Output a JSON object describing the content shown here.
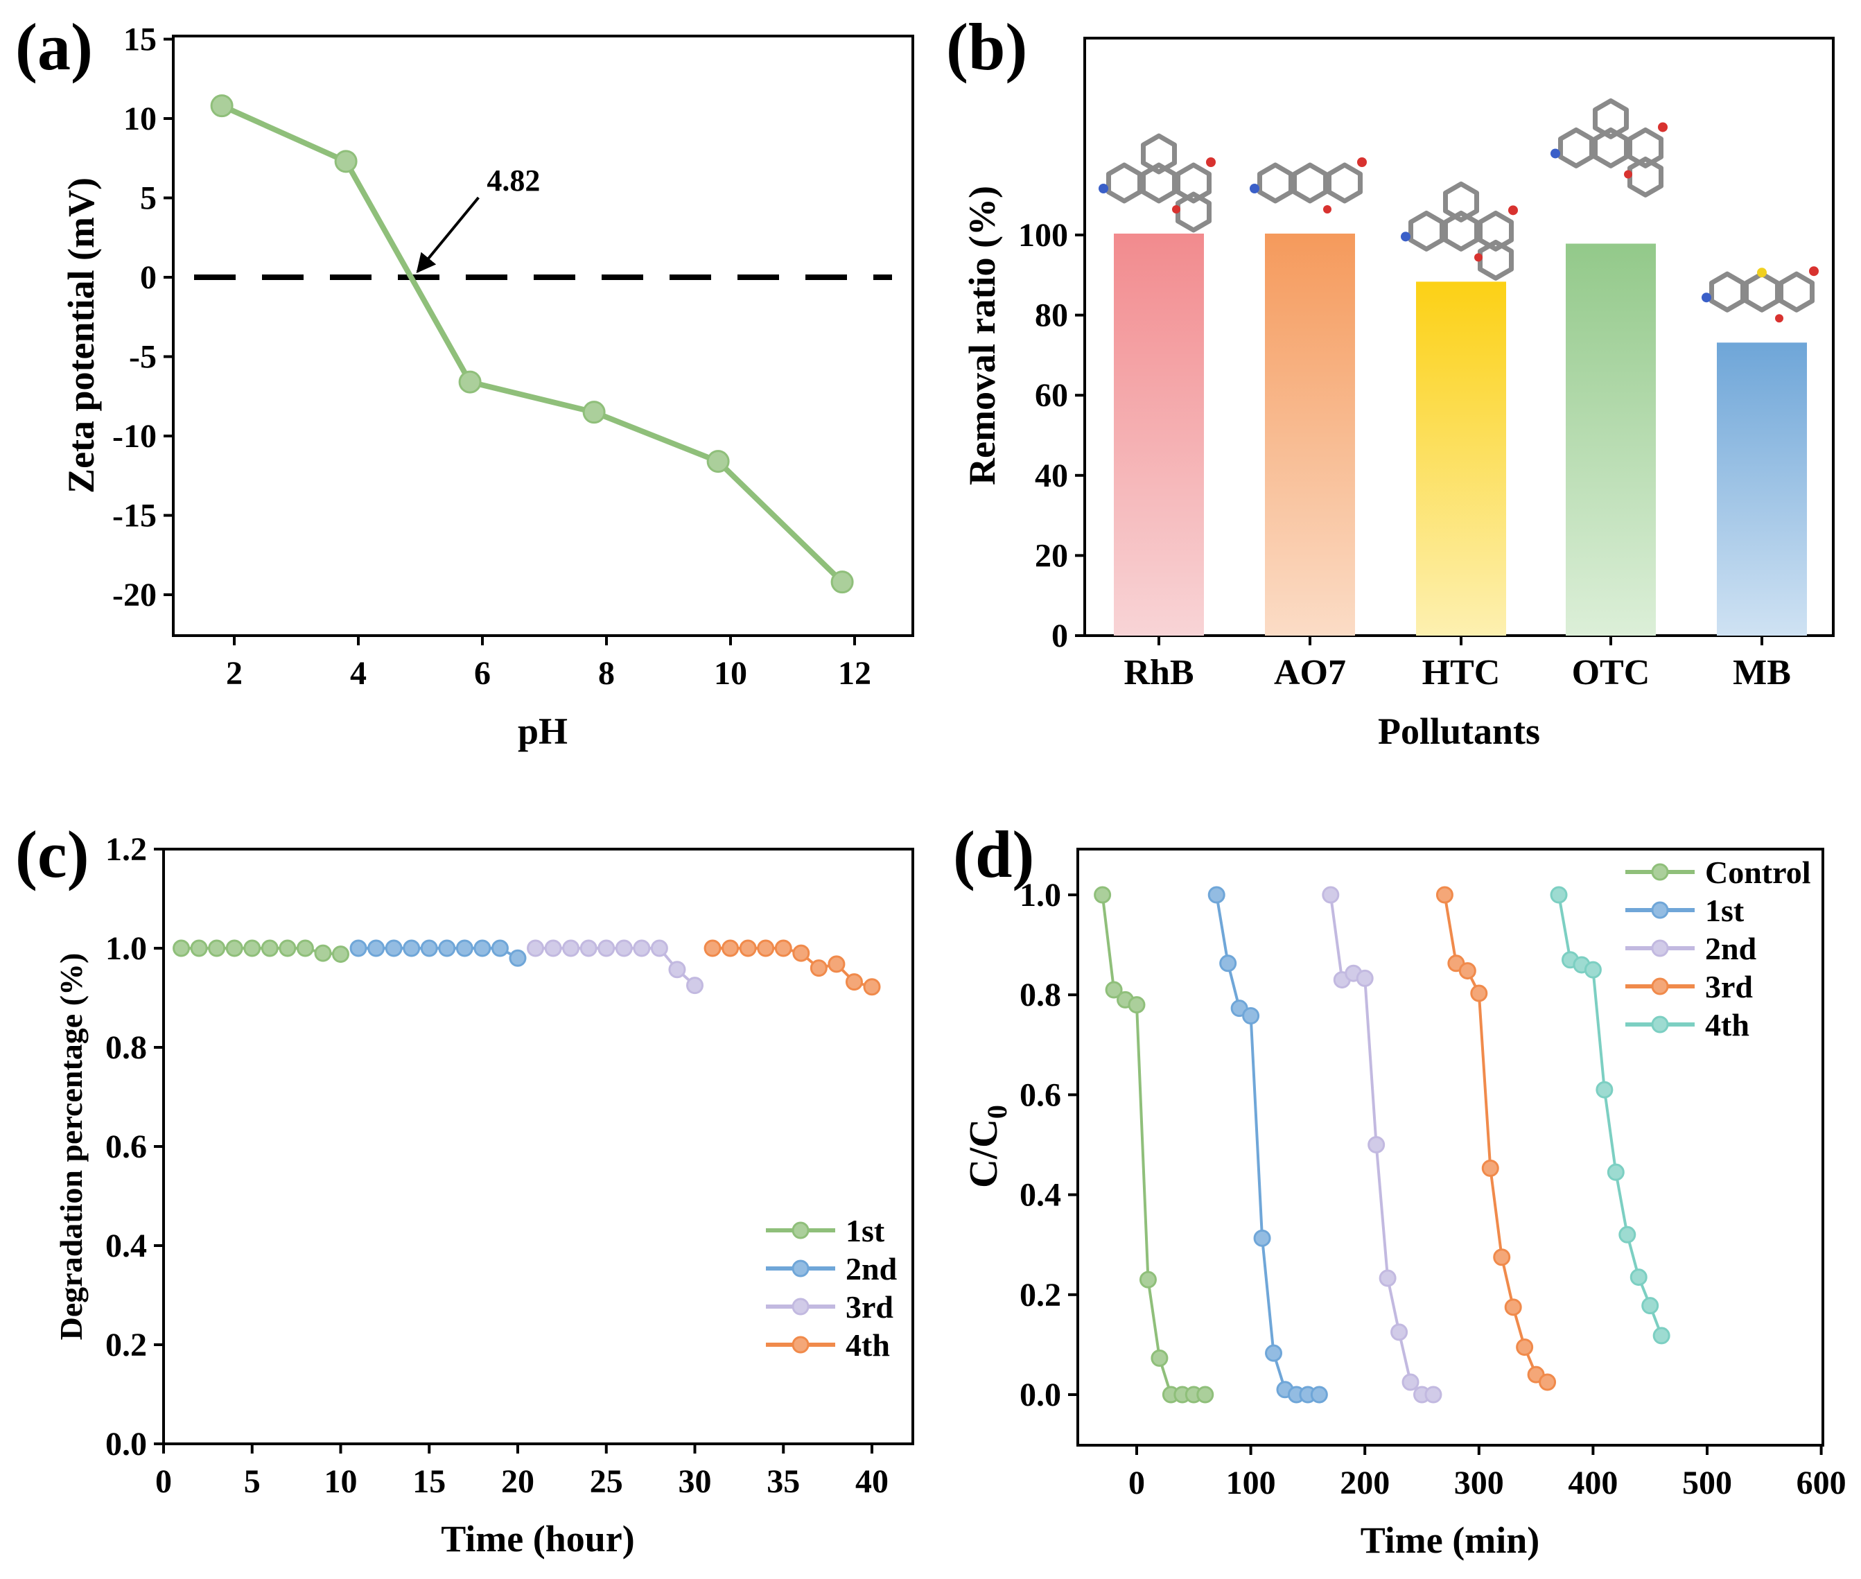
{
  "chart_data": [
    {
      "id": "a",
      "panel_label": "(a)",
      "type": "line",
      "xlabel": "pH",
      "ylabel": "Zeta potential (mV)",
      "xlim": [
        1,
        13
      ],
      "ylim": [
        -23,
        15
      ],
      "xticks": [
        2,
        4,
        6,
        8,
        10,
        12
      ],
      "yticks": [
        15,
        10,
        5,
        0,
        -5,
        -10,
        -15,
        -20
      ],
      "xtick_labels": [
        "2",
        "4",
        "6",
        "8",
        "10",
        "12"
      ],
      "ytick_labels": [
        "15",
        "10",
        "5",
        "0",
        "-5",
        "-10",
        "-15",
        "-20"
      ],
      "reference_line": {
        "y": 0,
        "style": "dashed"
      },
      "annotation": {
        "text": "4.82",
        "x": 4.82,
        "y": 0
      },
      "series": [
        {
          "name": "Zeta potential",
          "color": "#8fbf7a",
          "x": [
            1.8,
            3.8,
            5.8,
            7.8,
            9.8,
            11.8
          ],
          "y": [
            10.8,
            7.3,
            -6.6,
            -8.5,
            -11.6,
            -19.2
          ]
        }
      ]
    },
    {
      "id": "b",
      "panel_label": "(b)",
      "type": "bar",
      "xlabel": "Pollutants",
      "ylabel": "Removal ratio (%)",
      "ylim": [
        0,
        150
      ],
      "yticks": [
        0,
        20,
        40,
        60,
        80,
        100
      ],
      "ytick_labels": [
        "0",
        "20",
        "40",
        "60",
        "80",
        "100"
      ],
      "categories": [
        "RhB",
        "AO7",
        "HTC",
        "OTC",
        "MB"
      ],
      "values": [
        100,
        100,
        88,
        97.5,
        72.8
      ],
      "colors": [
        "#f28b8e",
        "#f59a5c",
        "#fcd116",
        "#93c98a",
        "#6fa6d8"
      ],
      "molecule_icons": [
        "RhB molecule",
        "AO7 molecule",
        "HTC molecule",
        "OTC molecule",
        "MB molecule"
      ]
    },
    {
      "id": "c",
      "panel_label": "(c)",
      "type": "line",
      "xlabel": "Time (hour)",
      "ylabel": "Degradation percentage (%)",
      "xlim": [
        0,
        41.5
      ],
      "ylim": [
        0,
        1.2
      ],
      "xticks": [
        0,
        5,
        10,
        15,
        20,
        25,
        30,
        35,
        40
      ],
      "yticks": [
        0,
        0.2,
        0.4,
        0.6,
        0.8,
        1.0,
        1.2
      ],
      "xtick_labels": [
        "0",
        "5",
        "10",
        "15",
        "20",
        "25",
        "30",
        "35",
        "40"
      ],
      "ytick_labels": [
        "0.0",
        "0.2",
        "0.4",
        "0.6",
        "0.8",
        "1.0",
        "1.2"
      ],
      "legend_position": "lower-right",
      "series": [
        {
          "name": "1st",
          "color": "#8fbf7a",
          "x": [
            1,
            2,
            3,
            4,
            5,
            6,
            7,
            8,
            9,
            10
          ],
          "y": [
            1.0,
            1.0,
            1.0,
            1.0,
            1.0,
            1.0,
            1.0,
            1.0,
            0.99,
            0.988
          ]
        },
        {
          "name": "2nd",
          "color": "#6fa6d8",
          "x": [
            11,
            12,
            13,
            14,
            15,
            16,
            17,
            18,
            19,
            20
          ],
          "y": [
            1.0,
            1.0,
            1.0,
            1.0,
            1.0,
            1.0,
            1.0,
            1.0,
            1.0,
            0.98
          ]
        },
        {
          "name": "3rd",
          "color": "#c2b9e0",
          "x": [
            21,
            22,
            23,
            24,
            25,
            26,
            27,
            28,
            29,
            30
          ],
          "y": [
            1.0,
            1.0,
            1.0,
            1.0,
            1.0,
            1.0,
            1.0,
            1.0,
            0.957,
            0.925
          ]
        },
        {
          "name": "4th",
          "color": "#f08a4b",
          "x": [
            31,
            32,
            33,
            34,
            35,
            36,
            37,
            38,
            39,
            40
          ],
          "y": [
            1.0,
            1.0,
            1.0,
            1.0,
            1.0,
            0.99,
            0.96,
            0.968,
            0.932,
            0.922
          ]
        }
      ]
    },
    {
      "id": "d",
      "panel_label": "(d)",
      "type": "line",
      "xlabel": "Time (min)",
      "ylabel": "C/C0",
      "ylabel_main": "C/C",
      "ylabel_sub": "0",
      "xlim": [
        -50,
        600
      ],
      "ylim": [
        -0.1,
        1.1
      ],
      "xticks": [
        0,
        100,
        200,
        300,
        400,
        500,
        600
      ],
      "yticks": [
        0.0,
        0.2,
        0.4,
        0.6,
        0.8,
        1.0
      ],
      "xtick_labels": [
        "0",
        "100",
        "200",
        "300",
        "400",
        "500",
        "600"
      ],
      "ytick_labels": [
        "0.0",
        "0.2",
        "0.4",
        "0.6",
        "0.8",
        "1.0"
      ],
      "legend_position": "top-right",
      "series": [
        {
          "name": "Control",
          "color": "#8fbf7a",
          "x": [
            -30,
            -20,
            -10,
            0,
            10,
            20,
            30,
            40,
            50,
            60
          ],
          "y": [
            1.0,
            0.81,
            0.79,
            0.78,
            0.23,
            0.073,
            0.0,
            0.0,
            0.0,
            0.0
          ]
        },
        {
          "name": "1st",
          "color": "#6fa6d8",
          "x": [
            70,
            80,
            90,
            100,
            110,
            120,
            130,
            140,
            150,
            160
          ],
          "y": [
            1.0,
            0.863,
            0.773,
            0.758,
            0.313,
            0.083,
            0.01,
            0.0,
            0.0,
            0.0
          ]
        },
        {
          "name": "2nd",
          "color": "#c2b9e0",
          "x": [
            170,
            180,
            190,
            200,
            210,
            220,
            230,
            240,
            250,
            260
          ],
          "y": [
            1.0,
            0.83,
            0.843,
            0.833,
            0.5,
            0.233,
            0.125,
            0.025,
            0.0,
            0.0
          ]
        },
        {
          "name": "3rd",
          "color": "#f08a4b",
          "x": [
            270,
            280,
            290,
            300,
            310,
            320,
            330,
            340,
            350,
            360
          ],
          "y": [
            1.0,
            0.863,
            0.848,
            0.803,
            0.453,
            0.275,
            0.175,
            0.095,
            0.04,
            0.025
          ]
        },
        {
          "name": "4th",
          "color": "#7ccfc2",
          "x": [
            370,
            380,
            390,
            400,
            410,
            420,
            430,
            440,
            450,
            460
          ],
          "y": [
            1.0,
            0.87,
            0.86,
            0.85,
            0.61,
            0.445,
            0.32,
            0.235,
            0.178,
            0.118
          ]
        }
      ]
    }
  ]
}
